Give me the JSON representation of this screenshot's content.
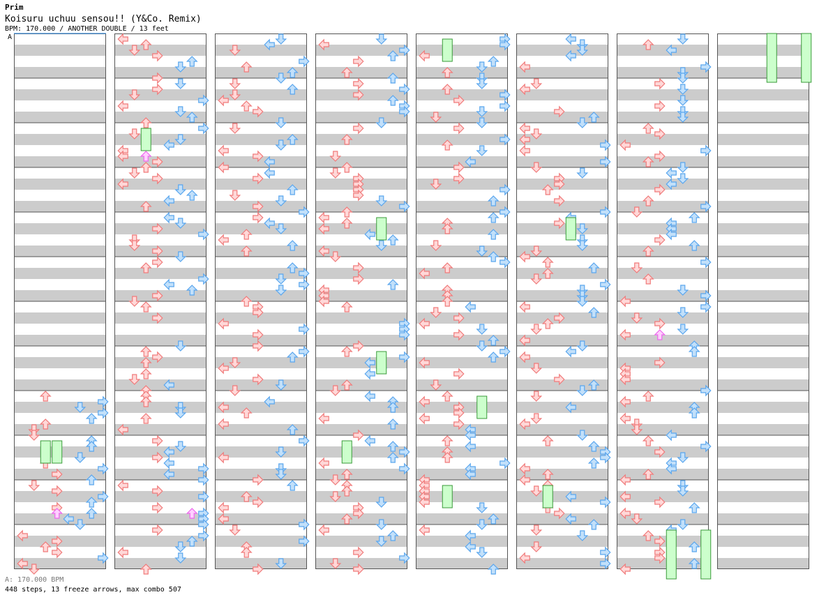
{
  "header": {
    "series": "Prim",
    "title": "Koisuru uchuu sensou!! (Y&Co. Remix)",
    "info": "BPM: 170.000 / ANOTHER DOUBLE / 13 feet",
    "section_marker": "A"
  },
  "footer": {
    "bpm_legend": "A: 170.000 BPM",
    "stats": "448 steps, 13 freeze arrows, max combo 507"
  },
  "colors": {
    "stripe_gray": "#cccccc",
    "frame": "#555555",
    "left_pad_arrow": "#f07a7a",
    "right_pad_arrow": "#5aa6ee",
    "arrow_fill_red": "#ffd8d8",
    "arrow_fill_blue": "#c2e0fa",
    "freeze_body": "#ccffcc",
    "freeze_border": "#3a9a3a",
    "shock_arrow": "#ee66ee"
  },
  "chart_data": {
    "type": "other",
    "layout": {
      "columns": 8,
      "measures_per_column": 12,
      "lanes_per_pad": 4,
      "pads": 2,
      "lane_order": [
        "left",
        "down",
        "up",
        "right"
      ]
    },
    "columns": [
      {
        "index": 1,
        "active_from_measure": 9
      },
      {
        "index": 2
      },
      {
        "index": 3
      },
      {
        "index": 4
      },
      {
        "index": 5
      },
      {
        "index": 6
      },
      {
        "index": 7
      },
      {
        "index": 8,
        "active_until_measure": 1
      }
    ],
    "freeze_arrows": [
      {
        "column": 1,
        "measure": 10,
        "lane": 4
      },
      {
        "column": 1,
        "measure": 10,
        "lane": 3
      },
      {
        "column": 2,
        "measure": 3,
        "lane": 3
      },
      {
        "column": 4,
        "measure": 5,
        "lane": 6
      },
      {
        "column": 4,
        "measure": 8,
        "lane": 6
      },
      {
        "column": 4,
        "measure": 10,
        "lane": 3
      },
      {
        "column": 5,
        "measure": 1,
        "lane": 3
      },
      {
        "column": 5,
        "measure": 9,
        "lane": 6
      },
      {
        "column": 5,
        "measure": 11,
        "lane": 3
      },
      {
        "column": 6,
        "measure": 5,
        "lane": 5
      },
      {
        "column": 6,
        "measure": 11,
        "lane": 3
      },
      {
        "column": 7,
        "measure": 12,
        "lane": 5
      },
      {
        "column": 7,
        "measure": 12,
        "lane": 8
      },
      {
        "column": 8,
        "measure": 1,
        "lane": 5
      },
      {
        "column": 8,
        "measure": 1,
        "lane": 8
      }
    ],
    "shock_arrows": [
      {
        "column": 1,
        "measure": 11,
        "lane": 4
      },
      {
        "column": 2,
        "measure": 3,
        "lane": 3
      },
      {
        "column": 2,
        "measure": 11,
        "lane": 7
      },
      {
        "column": 7,
        "measure": 7,
        "lane": 4
      }
    ],
    "totals": {
      "steps": 448,
      "freeze_arrows": 13,
      "max_combo": 507,
      "bpm": 170.0
    }
  }
}
